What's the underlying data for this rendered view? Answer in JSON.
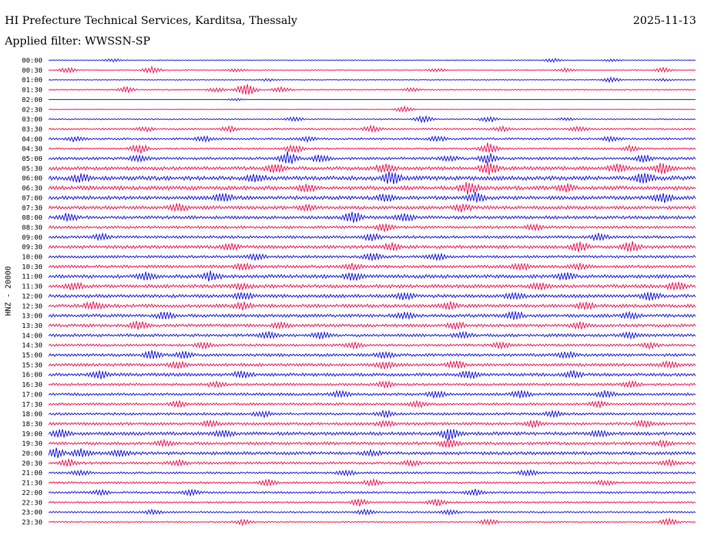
{
  "header": {
    "title": "HI Prefecture Technical Services, Karditsa, Thessaly",
    "date": "2025-11-13",
    "filter": "Applied filter: WWSSN-SP"
  },
  "chart_data": {
    "type": "line",
    "title": "HI Prefecture Technical Services, Karditsa, Thessaly",
    "ylabel": "HNZ - 20000",
    "colors": [
      "#0000dd",
      "#ee0044"
    ],
    "rows": [
      {
        "label": "00:00",
        "amp": 0.1,
        "bursts": [
          [
            0.1,
            0.4
          ],
          [
            0.78,
            0.5
          ],
          [
            0.87,
            0.3
          ]
        ]
      },
      {
        "label": "00:30",
        "amp": 0.12,
        "bursts": [
          [
            0.03,
            0.7
          ],
          [
            0.16,
            0.8
          ],
          [
            0.29,
            0.4
          ],
          [
            0.6,
            0.5
          ],
          [
            0.8,
            0.5
          ],
          [
            0.95,
            0.6
          ]
        ]
      },
      {
        "label": "01:00",
        "amp": 0.1,
        "bursts": [
          [
            0.34,
            0.3
          ],
          [
            0.87,
            0.6
          ],
          [
            0.95,
            0.3
          ]
        ]
      },
      {
        "label": "01:30",
        "amp": 0.15,
        "bursts": [
          [
            0.12,
            0.7
          ],
          [
            0.26,
            0.5
          ],
          [
            0.3,
            0.8
          ],
          [
            0.31,
            1.0
          ],
          [
            0.36,
            0.6
          ],
          [
            0.56,
            0.4
          ]
        ]
      },
      {
        "label": "02:00",
        "amp": 0.04,
        "bursts": [
          [
            0.29,
            0.3
          ]
        ]
      },
      {
        "label": "02:30",
        "amp": 0.08,
        "bursts": [
          [
            0.55,
            0.8
          ]
        ]
      },
      {
        "label": "03:00",
        "amp": 0.15,
        "bursts": [
          [
            0.38,
            0.5
          ],
          [
            0.58,
            0.8
          ],
          [
            0.68,
            0.7
          ],
          [
            0.8,
            0.3
          ]
        ]
      },
      {
        "label": "03:30",
        "amp": 0.22,
        "bursts": [
          [
            0.15,
            0.5
          ],
          [
            0.28,
            0.6
          ],
          [
            0.5,
            0.7
          ],
          [
            0.7,
            0.6
          ],
          [
            0.82,
            0.6
          ]
        ]
      },
      {
        "label": "04:00",
        "amp": 0.25,
        "bursts": [
          [
            0.04,
            0.6
          ],
          [
            0.24,
            0.6
          ],
          [
            0.4,
            0.5
          ],
          [
            0.6,
            0.6
          ],
          [
            0.87,
            0.6
          ]
        ]
      },
      {
        "label": "04:30",
        "amp": 0.22,
        "bursts": [
          [
            0.14,
            1.2
          ],
          [
            0.38,
            1.0
          ],
          [
            0.68,
            1.4
          ],
          [
            0.9,
            0.7
          ]
        ]
      },
      {
        "label": "05:00",
        "amp": 0.32,
        "bursts": [
          [
            0.14,
            0.8
          ],
          [
            0.37,
            1.6
          ],
          [
            0.42,
            0.9
          ],
          [
            0.62,
            0.6
          ],
          [
            0.68,
            1.2
          ],
          [
            0.92,
            0.9
          ]
        ]
      },
      {
        "label": "05:30",
        "amp": 0.42,
        "bursts": [
          [
            0.35,
            1.2
          ],
          [
            0.52,
            1.0
          ],
          [
            0.68,
            1.6
          ],
          [
            0.88,
            0.9
          ],
          [
            0.95,
            1.2
          ]
        ]
      },
      {
        "label": "06:00",
        "amp": 0.5,
        "bursts": [
          [
            0.05,
            0.9
          ],
          [
            0.32,
            0.8
          ],
          [
            0.53,
            1.5
          ],
          [
            0.92,
            1.3
          ]
        ]
      },
      {
        "label": "06:30",
        "amp": 0.48,
        "bursts": [
          [
            0.4,
            0.9
          ],
          [
            0.65,
            1.6
          ],
          [
            0.8,
            0.8
          ]
        ]
      },
      {
        "label": "07:00",
        "amp": 0.45,
        "bursts": [
          [
            0.27,
            1.0
          ],
          [
            0.52,
            0.8
          ],
          [
            0.66,
            1.2
          ],
          [
            0.95,
            1.1
          ]
        ]
      },
      {
        "label": "07:30",
        "amp": 0.4,
        "bursts": [
          [
            0.2,
            0.9
          ],
          [
            0.4,
            0.6
          ],
          [
            0.64,
            0.9
          ]
        ]
      },
      {
        "label": "08:00",
        "amp": 0.38,
        "bursts": [
          [
            0.03,
            1.0
          ],
          [
            0.47,
            1.4
          ],
          [
            0.55,
            0.9
          ]
        ]
      },
      {
        "label": "08:30",
        "amp": 0.32,
        "bursts": [
          [
            0.52,
            1.0
          ],
          [
            0.75,
            0.6
          ]
        ]
      },
      {
        "label": "09:00",
        "amp": 0.32,
        "bursts": [
          [
            0.08,
            0.7
          ],
          [
            0.5,
            0.8
          ],
          [
            0.85,
            0.9
          ]
        ]
      },
      {
        "label": "09:30",
        "amp": 0.38,
        "bursts": [
          [
            0.28,
            0.8
          ],
          [
            0.53,
            0.9
          ],
          [
            0.82,
            1.2
          ],
          [
            0.9,
            1.4
          ]
        ]
      },
      {
        "label": "10:00",
        "amp": 0.32,
        "bursts": [
          [
            0.32,
            0.7
          ],
          [
            0.5,
            1.1
          ],
          [
            0.6,
            0.8
          ]
        ]
      },
      {
        "label": "10:30",
        "amp": 0.35,
        "bursts": [
          [
            0.3,
            0.8
          ],
          [
            0.47,
            0.6
          ],
          [
            0.73,
            0.8
          ],
          [
            0.82,
            0.6
          ]
        ]
      },
      {
        "label": "11:00",
        "amp": 0.42,
        "bursts": [
          [
            0.15,
            0.8
          ],
          [
            0.25,
            1.0
          ],
          [
            0.47,
            0.9
          ],
          [
            0.8,
            0.8
          ]
        ]
      },
      {
        "label": "11:30",
        "amp": 0.42,
        "bursts": [
          [
            0.04,
            0.8
          ],
          [
            0.3,
            0.7
          ],
          [
            0.76,
            0.8
          ],
          [
            0.97,
            0.9
          ]
        ]
      },
      {
        "label": "12:00",
        "amp": 0.4,
        "bursts": [
          [
            0.3,
            0.8
          ],
          [
            0.55,
            0.9
          ],
          [
            0.72,
            0.8
          ],
          [
            0.93,
            1.0
          ]
        ]
      },
      {
        "label": "12:30",
        "amp": 0.4,
        "bursts": [
          [
            0.07,
            1.0
          ],
          [
            0.3,
            0.8
          ],
          [
            0.62,
            0.9
          ],
          [
            0.83,
            0.8
          ]
        ]
      },
      {
        "label": "13:00",
        "amp": 0.38,
        "bursts": [
          [
            0.18,
            0.8
          ],
          [
            0.55,
            0.8
          ],
          [
            0.72,
            1.0
          ],
          [
            0.9,
            0.7
          ]
        ]
      },
      {
        "label": "13:30",
        "amp": 0.36,
        "bursts": [
          [
            0.14,
            1.0
          ],
          [
            0.36,
            0.8
          ],
          [
            0.63,
            0.8
          ],
          [
            0.82,
            0.8
          ]
        ]
      },
      {
        "label": "14:00",
        "amp": 0.35,
        "bursts": [
          [
            0.34,
            0.8
          ],
          [
            0.42,
            0.8
          ],
          [
            0.64,
            0.7
          ],
          [
            0.9,
            0.6
          ]
        ]
      },
      {
        "label": "14:30",
        "amp": 0.3,
        "bursts": [
          [
            0.24,
            0.7
          ],
          [
            0.47,
            0.7
          ],
          [
            0.7,
            0.6
          ],
          [
            0.93,
            0.6
          ]
        ]
      },
      {
        "label": "15:00",
        "amp": 0.35,
        "bursts": [
          [
            0.16,
            1.0
          ],
          [
            0.21,
            0.9
          ],
          [
            0.52,
            0.7
          ],
          [
            0.8,
            0.7
          ]
        ]
      },
      {
        "label": "15:30",
        "amp": 0.35,
        "bursts": [
          [
            0.2,
            1.0
          ],
          [
            0.52,
            0.9
          ],
          [
            0.63,
            1.0
          ],
          [
            0.96,
            0.7
          ]
        ]
      },
      {
        "label": "16:00",
        "amp": 0.38,
        "bursts": [
          [
            0.08,
            0.9
          ],
          [
            0.3,
            0.9
          ],
          [
            0.65,
            1.0
          ],
          [
            0.81,
            0.8
          ]
        ]
      },
      {
        "label": "16:30",
        "amp": 0.3,
        "bursts": [
          [
            0.26,
            0.7
          ],
          [
            0.52,
            0.7
          ],
          [
            0.9,
            0.7
          ]
        ]
      },
      {
        "label": "17:00",
        "amp": 0.32,
        "bursts": [
          [
            0.45,
            0.8
          ],
          [
            0.6,
            0.9
          ],
          [
            0.73,
            0.9
          ],
          [
            0.86,
            0.8
          ]
        ]
      },
      {
        "label": "17:30",
        "amp": 0.3,
        "bursts": [
          [
            0.2,
            0.8
          ],
          [
            0.57,
            0.8
          ],
          [
            0.85,
            0.8
          ]
        ]
      },
      {
        "label": "18:00",
        "amp": 0.3,
        "bursts": [
          [
            0.33,
            0.7
          ],
          [
            0.52,
            0.8
          ],
          [
            0.78,
            0.7
          ]
        ]
      },
      {
        "label": "18:30",
        "amp": 0.32,
        "bursts": [
          [
            0.25,
            0.7
          ],
          [
            0.52,
            0.7
          ],
          [
            0.75,
            0.8
          ],
          [
            0.92,
            0.8
          ]
        ]
      },
      {
        "label": "19:00",
        "amp": 0.4,
        "bursts": [
          [
            0.02,
            0.9
          ],
          [
            0.27,
            0.8
          ],
          [
            0.62,
            1.4
          ],
          [
            0.85,
            0.8
          ]
        ]
      },
      {
        "label": "19:30",
        "amp": 0.35,
        "bursts": [
          [
            0.18,
            0.7
          ],
          [
            0.62,
            1.2
          ],
          [
            0.95,
            0.6
          ]
        ]
      },
      {
        "label": "20:00",
        "amp": 0.38,
        "bursts": [
          [
            0.01,
            1.1
          ],
          [
            0.05,
            0.9
          ],
          [
            0.11,
            0.8
          ],
          [
            0.5,
            0.6
          ]
        ]
      },
      {
        "label": "20:30",
        "amp": 0.3,
        "bursts": [
          [
            0.03,
            0.8
          ],
          [
            0.2,
            0.7
          ],
          [
            0.56,
            0.7
          ],
          [
            0.96,
            0.6
          ]
        ]
      },
      {
        "label": "21:00",
        "amp": 0.25,
        "bursts": [
          [
            0.05,
            0.6
          ],
          [
            0.46,
            0.7
          ],
          [
            0.74,
            0.8
          ]
        ]
      },
      {
        "label": "21:30",
        "amp": 0.25,
        "bursts": [
          [
            0.34,
            0.7
          ],
          [
            0.5,
            0.7
          ],
          [
            0.86,
            0.6
          ]
        ]
      },
      {
        "label": "22:00",
        "amp": 0.25,
        "bursts": [
          [
            0.08,
            0.6
          ],
          [
            0.22,
            0.7
          ],
          [
            0.66,
            0.8
          ]
        ]
      },
      {
        "label": "22:30",
        "amp": 0.22,
        "bursts": [
          [
            0.48,
            0.8
          ],
          [
            0.6,
            0.9
          ]
        ]
      },
      {
        "label": "23:00",
        "amp": 0.2,
        "bursts": [
          [
            0.16,
            0.6
          ],
          [
            0.49,
            0.7
          ],
          [
            0.62,
            0.6
          ]
        ]
      },
      {
        "label": "23:30",
        "amp": 0.18,
        "bursts": [
          [
            0.3,
            0.6
          ],
          [
            0.68,
            0.7
          ],
          [
            0.96,
            0.8
          ]
        ]
      }
    ]
  }
}
